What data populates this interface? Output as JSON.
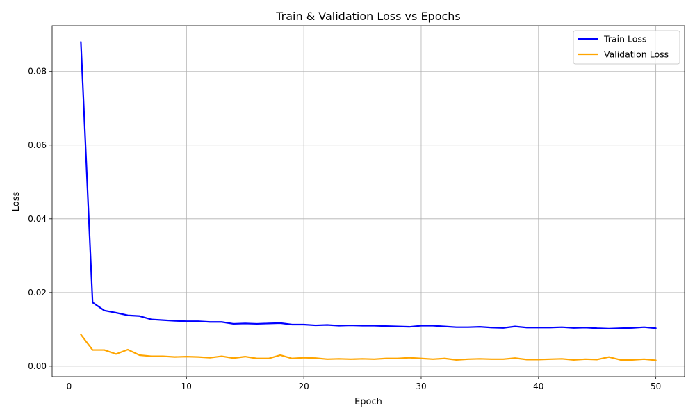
{
  "chart_data": {
    "type": "line",
    "title": "Train & Validation Loss vs Epochs",
    "xlabel": "Epoch",
    "ylabel": "Loss",
    "xlim": [
      -1.45,
      52.45
    ],
    "ylim": [
      -0.00285,
      0.0924
    ],
    "xticks": [
      0,
      10,
      20,
      30,
      40,
      50
    ],
    "yticks": [
      0.0,
      0.02,
      0.04,
      0.06,
      0.08
    ],
    "ytick_labels": [
      "0.00",
      "0.02",
      "0.04",
      "0.06",
      "0.08"
    ],
    "grid": true,
    "legend_position": "top-right",
    "x": [
      1,
      2,
      3,
      4,
      5,
      6,
      7,
      8,
      9,
      10,
      11,
      12,
      13,
      14,
      15,
      16,
      17,
      18,
      19,
      20,
      21,
      22,
      23,
      24,
      25,
      26,
      27,
      28,
      29,
      30,
      31,
      32,
      33,
      34,
      35,
      36,
      37,
      38,
      39,
      40,
      41,
      42,
      43,
      44,
      45,
      46,
      47,
      48,
      49,
      50
    ],
    "series": [
      {
        "name": "Train Loss",
        "color": "#0000ff",
        "values": [
          0.088,
          0.0173,
          0.0151,
          0.0145,
          0.0138,
          0.0136,
          0.0127,
          0.0125,
          0.0123,
          0.0122,
          0.0122,
          0.012,
          0.012,
          0.0115,
          0.0116,
          0.0115,
          0.0116,
          0.0117,
          0.0113,
          0.0113,
          0.0111,
          0.0112,
          0.011,
          0.0111,
          0.011,
          0.011,
          0.0109,
          0.0108,
          0.0107,
          0.011,
          0.011,
          0.0108,
          0.0106,
          0.0106,
          0.0107,
          0.0105,
          0.0104,
          0.0108,
          0.0105,
          0.0105,
          0.0105,
          0.0106,
          0.0104,
          0.0105,
          0.0103,
          0.0102,
          0.0103,
          0.0104,
          0.0106,
          0.0103
        ]
      },
      {
        "name": "Validation Loss",
        "color": "#ffa500",
        "values": [
          0.0086,
          0.0044,
          0.0044,
          0.0033,
          0.0045,
          0.003,
          0.0027,
          0.0027,
          0.0025,
          0.0026,
          0.0025,
          0.0023,
          0.0027,
          0.0022,
          0.0026,
          0.0021,
          0.0021,
          0.003,
          0.0021,
          0.0023,
          0.0022,
          0.0019,
          0.002,
          0.0019,
          0.002,
          0.0019,
          0.0021,
          0.0021,
          0.0023,
          0.0021,
          0.0019,
          0.0021,
          0.0017,
          0.0019,
          0.002,
          0.0019,
          0.0019,
          0.0022,
          0.0018,
          0.0018,
          0.0019,
          0.002,
          0.0017,
          0.0019,
          0.0018,
          0.0025,
          0.0017,
          0.0017,
          0.0019,
          0.0016
        ]
      }
    ]
  }
}
